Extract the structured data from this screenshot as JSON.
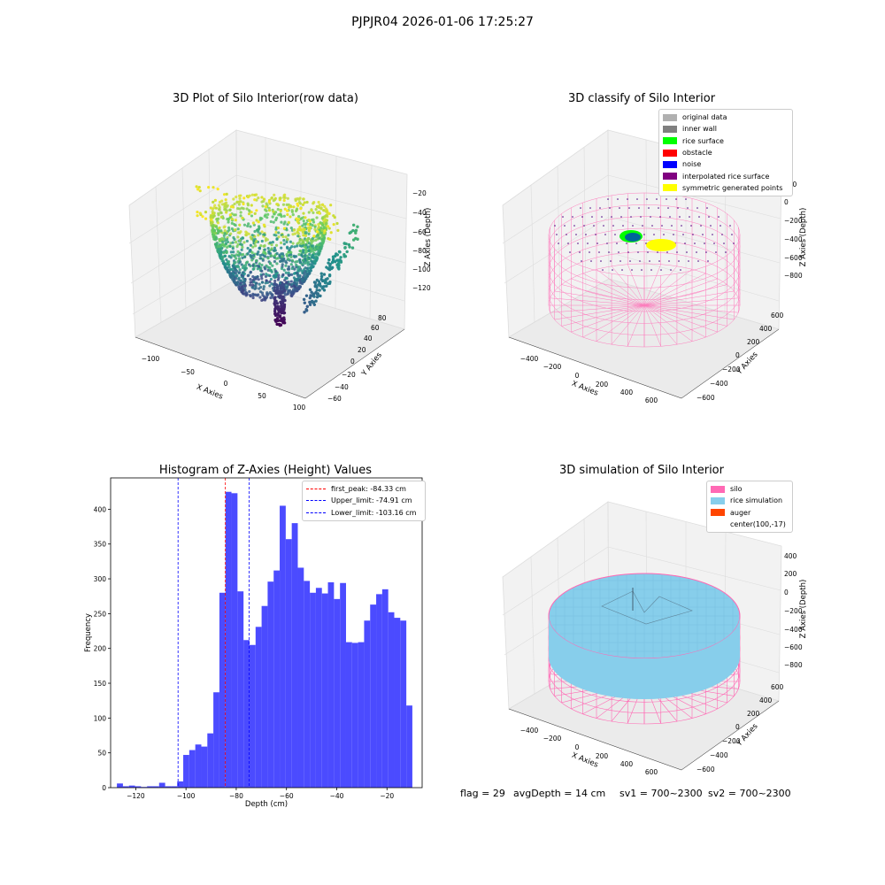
{
  "suptitle": "PJPJR04 2026-01-06 17:25:27",
  "colors": {
    "hist_bar": "#4b4bff",
    "first_peak": "#ff0000",
    "limits": "#0000ff",
    "silo": "#ff69b4",
    "rice": "#87ceeb",
    "auger": "#ff4500"
  },
  "chart_data": [
    {
      "type": "scatter",
      "title": "3D Plot of Silo Interior(row data)",
      "xlabel": "X Axies",
      "ylabel": "Y Axies",
      "zlabel": "Z Axies (Depth)",
      "x_ticks": [
        "−100",
        "−50",
        "0",
        "50",
        "100"
      ],
      "y_ticks": [
        "−60",
        "−40",
        "−20",
        "0",
        "20",
        "40",
        "60",
        "80"
      ],
      "z_ticks": [
        "−20",
        "−40",
        "−60",
        "−80",
        "−100",
        "−120"
      ],
      "colormap": "viridis"
    },
    {
      "type": "scatter",
      "title": "3D classify of Silo Interior",
      "xlabel": "X Axies",
      "ylabel": "Y Axies",
      "zlabel": "Z Axies (Depth)",
      "x_ticks": [
        "−400",
        "−200",
        "0",
        "200",
        "400",
        "600"
      ],
      "y_ticks": [
        "−600",
        "−400",
        "−200",
        "0",
        "200",
        "400",
        "600"
      ],
      "z_ticks": [
        "200",
        "0",
        "−200",
        "−400",
        "−600",
        "−800"
      ],
      "legend": [
        {
          "label": "original data",
          "color": "#b0b0b0"
        },
        {
          "label": "inner wall",
          "color": "#808080"
        },
        {
          "label": "rice surface",
          "color": "#00ff00"
        },
        {
          "label": "obstacle",
          "color": "#ff0000"
        },
        {
          "label": "noise",
          "color": "#0000ff"
        },
        {
          "label": "interpolated rice surface",
          "color": "#800080"
        },
        {
          "label": "symmetric generated points",
          "color": "#ffff00"
        }
      ]
    },
    {
      "type": "bar",
      "title": "Histogram of Z-Axies (Height) Values",
      "xlabel": "Depth (cm)",
      "ylabel": "Frequency",
      "xlim": [
        -130,
        -6
      ],
      "ylim": [
        0,
        445
      ],
      "x_ticks": [
        -120,
        -100,
        -80,
        -60,
        -40,
        -20
      ],
      "x_tick_labels": [
        "−120",
        "−100",
        "−80",
        "−60",
        "−40",
        "−20"
      ],
      "y_ticks": [
        0,
        50,
        100,
        150,
        200,
        250,
        300,
        350,
        400
      ],
      "bins": {
        "start": -127.5,
        "width": 2.4,
        "values": [
          6,
          2,
          3,
          2,
          1,
          2,
          2,
          7,
          2,
          2,
          9,
          47,
          54,
          62,
          59,
          78,
          137,
          280,
          425,
          423,
          282,
          212,
          205,
          231,
          261,
          296,
          312,
          405,
          357,
          380,
          316,
          297,
          280,
          287,
          279,
          295,
          271,
          294,
          209,
          208,
          209,
          240,
          263,
          278,
          285,
          252,
          244,
          240,
          118
        ]
      },
      "vlines": [
        {
          "label": "first_peak: -84.33 cm",
          "x": -84.33,
          "color": "#ff0000"
        },
        {
          "label": "Upper_limit: -74.91 cm",
          "x": -74.91,
          "color": "#0000ff"
        },
        {
          "label": "Lower_limit: -103.16 cm",
          "x": -103.16,
          "color": "#0000ff"
        }
      ]
    },
    {
      "type": "scatter",
      "title": "3D simulation of Silo Interior",
      "xlabel": "X Axies",
      "ylabel": "Y Axies",
      "zlabel": "Z Axies (Depth)",
      "x_ticks": [
        "−400",
        "−200",
        "0",
        "200",
        "400",
        "600"
      ],
      "y_ticks": [
        "−600",
        "−400",
        "−200",
        "0",
        "200",
        "400",
        "600"
      ],
      "z_ticks": [
        "400",
        "200",
        "0",
        "−200",
        "−400",
        "−600",
        "−800"
      ],
      "legend": [
        {
          "label": "silo",
          "color": "#ff69b4"
        },
        {
          "label": "rice simulation",
          "color": "#87ceeb"
        },
        {
          "label": "auger",
          "color": "#ff4500"
        },
        {
          "label": "center(100,-17)",
          "color": ""
        }
      ]
    }
  ],
  "footer": {
    "flag": "flag = 29",
    "avg_depth": "avgDepth = 14 cm",
    "sv1": "sv1 = 700~2300",
    "sv2": "sv2 = 700~2300"
  }
}
